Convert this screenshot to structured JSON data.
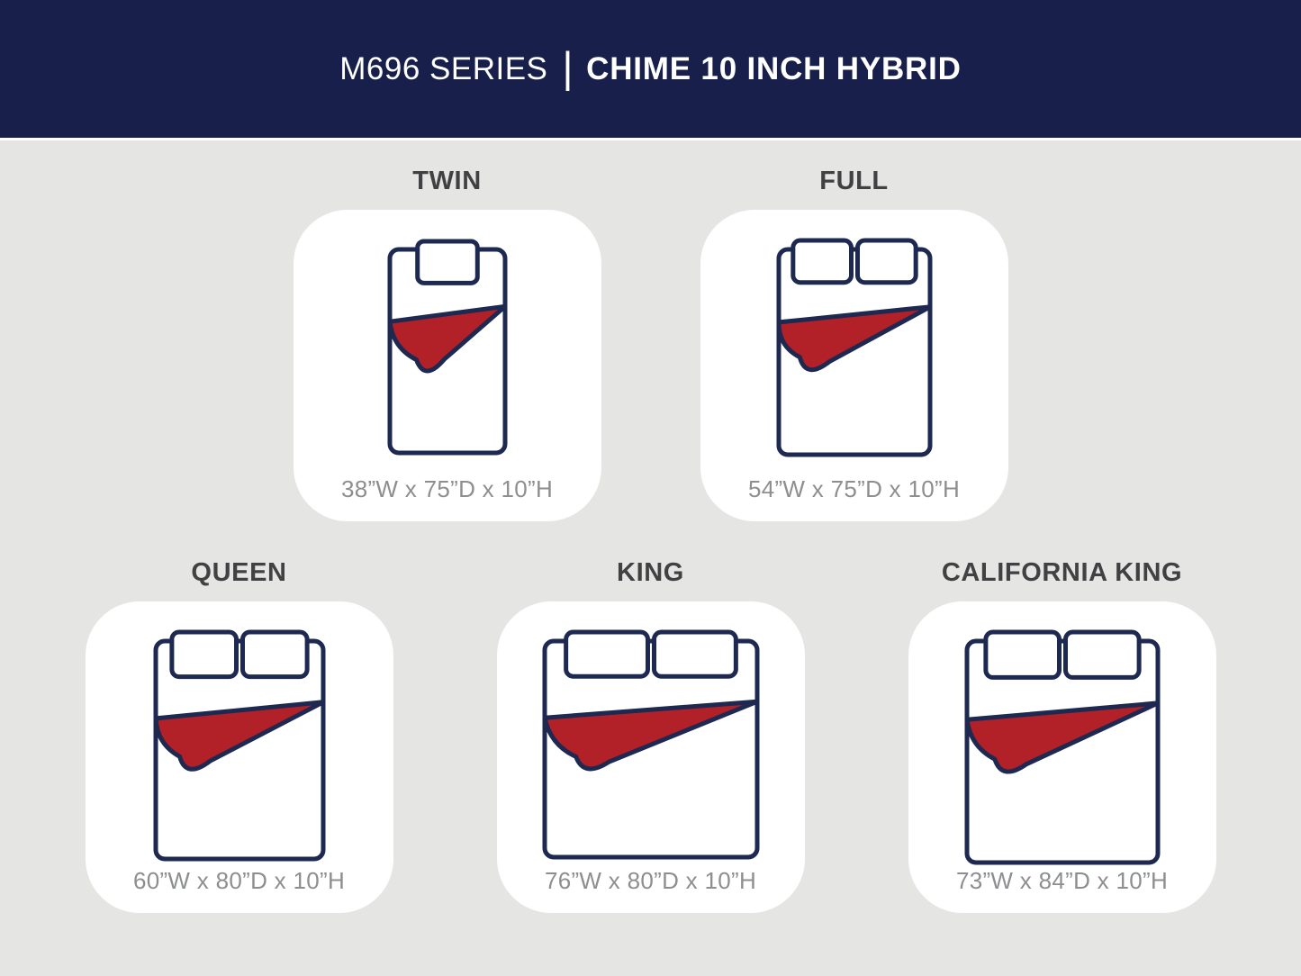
{
  "header": {
    "series": "M696 SERIES",
    "separator": "|",
    "product": "CHIME 10 INCH HYBRID"
  },
  "colors": {
    "header_bg": "#171f4a",
    "header_text": "#ffffff",
    "page_bg": "#e5e6e4",
    "card_bg": "#ffffff",
    "outline_navy": "#1d2951",
    "blanket_red": "#b22028",
    "label_text": "#414042",
    "dims_text": "#8c8e90"
  },
  "sizes": [
    {
      "id": "twin",
      "label": "TWIN",
      "dims": "38”W x 75”D x 10”H",
      "width_in": 38,
      "depth_in": 75,
      "height_in": 10,
      "pillows": 1
    },
    {
      "id": "full",
      "label": "FULL",
      "dims": "54”W x 75”D x 10”H",
      "width_in": 54,
      "depth_in": 75,
      "height_in": 10,
      "pillows": 2
    },
    {
      "id": "queen",
      "label": "QUEEN",
      "dims": "60”W x 80”D x 10”H",
      "width_in": 60,
      "depth_in": 80,
      "height_in": 10,
      "pillows": 2
    },
    {
      "id": "king",
      "label": "KING",
      "dims": "76”W x 80”D x 10”H",
      "width_in": 76,
      "depth_in": 80,
      "height_in": 10,
      "pillows": 2
    },
    {
      "id": "california-king",
      "label": "CALIFORNIA KING",
      "dims": "73”W x 84”D x 10”H",
      "width_in": 73,
      "depth_in": 84,
      "height_in": 10,
      "pillows": 2
    }
  ]
}
